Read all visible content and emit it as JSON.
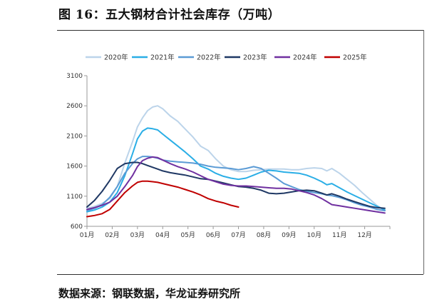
{
  "figure": {
    "title": "图 16：五大钢材合计社会库存（万吨）",
    "source": "数据来源：钢联数据，华龙证券研究所"
  },
  "chart_data": {
    "type": "line",
    "y_ticks": [
      600,
      1100,
      1600,
      2100,
      2600,
      3100
    ],
    "ylim": [
      600,
      3100
    ],
    "x_ticks": [
      "01月",
      "02月",
      "03月",
      "04月",
      "05月",
      "06月",
      "07月",
      "08月",
      "09月",
      "10月",
      "11月",
      "12月"
    ],
    "xlim": [
      0,
      12
    ],
    "grid": false,
    "legend_position": "top",
    "series": [
      {
        "name": "2020年",
        "color": "#bcd4ea",
        "x": [
          0.0,
          0.3,
          0.6,
          0.9,
          1.2,
          1.5,
          1.8,
          2.0,
          2.2,
          2.4,
          2.6,
          2.8,
          3.0,
          3.3,
          3.6,
          3.9,
          4.2,
          4.5,
          4.8,
          5.1,
          5.4,
          5.7,
          6.0,
          6.3,
          6.6,
          6.9,
          7.2,
          7.5,
          7.8,
          8.1,
          8.4,
          8.7,
          9.0,
          9.3,
          9.5,
          9.7,
          10.0,
          10.3,
          10.6,
          10.9,
          11.2,
          11.5,
          11.8
        ],
        "y": [
          900,
          930,
          980,
          1060,
          1260,
          1650,
          2000,
          2250,
          2400,
          2520,
          2580,
          2600,
          2550,
          2430,
          2340,
          2210,
          2080,
          1930,
          1860,
          1720,
          1600,
          1540,
          1510,
          1510,
          1530,
          1540,
          1550,
          1550,
          1550,
          1540,
          1540,
          1560,
          1570,
          1560,
          1520,
          1560,
          1480,
          1380,
          1280,
          1160,
          1050,
          940,
          870
        ]
      },
      {
        "name": "2021年",
        "color": "#2aaee6",
        "x": [
          0.0,
          0.3,
          0.6,
          0.9,
          1.2,
          1.5,
          1.8,
          2.0,
          2.2,
          2.4,
          2.6,
          2.8,
          3.0,
          3.3,
          3.6,
          3.9,
          4.2,
          4.5,
          4.8,
          5.1,
          5.4,
          5.7,
          6.0,
          6.3,
          6.6,
          6.9,
          7.2,
          7.5,
          7.8,
          8.1,
          8.4,
          8.7,
          9.0,
          9.3,
          9.5,
          9.7,
          10.0,
          10.3,
          10.6,
          10.9,
          11.2,
          11.5,
          11.8
        ],
        "y": [
          840,
          870,
          920,
          1000,
          1160,
          1440,
          1800,
          2050,
          2180,
          2230,
          2220,
          2200,
          2130,
          2030,
          1930,
          1830,
          1720,
          1600,
          1550,
          1480,
          1430,
          1400,
          1380,
          1400,
          1450,
          1500,
          1530,
          1520,
          1500,
          1490,
          1480,
          1450,
          1400,
          1340,
          1290,
          1310,
          1240,
          1170,
          1110,
          1050,
          990,
          930,
          870
        ]
      },
      {
        "name": "2022年",
        "color": "#5b9bd5",
        "x": [
          0.0,
          0.3,
          0.6,
          0.9,
          1.2,
          1.5,
          1.8,
          2.0,
          2.2,
          2.4,
          2.6,
          2.8,
          3.0,
          3.3,
          3.6,
          3.9,
          4.2,
          4.5,
          4.8,
          5.1,
          5.4,
          5.7,
          6.0,
          6.3,
          6.6,
          6.9,
          7.2,
          7.5,
          7.8,
          8.1,
          8.4,
          8.7,
          9.0,
          9.3,
          9.5,
          9.7,
          10.0,
          10.3,
          10.6,
          10.9,
          11.2,
          11.5,
          11.8
        ],
        "y": [
          860,
          900,
          960,
          1080,
          1260,
          1480,
          1640,
          1720,
          1760,
          1760,
          1750,
          1730,
          1700,
          1680,
          1670,
          1660,
          1650,
          1630,
          1600,
          1580,
          1570,
          1560,
          1540,
          1560,
          1590,
          1560,
          1480,
          1400,
          1310,
          1260,
          1210,
          1180,
          1160,
          1140,
          1120,
          1110,
          1080,
          1040,
          990,
          950,
          920,
          880,
          860
        ]
      },
      {
        "name": "2023年",
        "color": "#1f3864",
        "x": [
          0.0,
          0.3,
          0.6,
          0.9,
          1.2,
          1.5,
          1.8,
          2.0,
          2.2,
          2.4,
          2.6,
          2.8,
          3.0,
          3.3,
          3.6,
          3.9,
          4.2,
          4.5,
          4.8,
          5.1,
          5.4,
          5.7,
          6.0,
          6.3,
          6.6,
          6.9,
          7.2,
          7.5,
          7.8,
          8.1,
          8.4,
          8.7,
          9.0,
          9.3,
          9.5,
          9.7,
          10.0,
          10.3,
          10.6,
          10.9,
          11.2,
          11.5,
          11.8
        ],
        "y": [
          920,
          1030,
          1180,
          1360,
          1560,
          1640,
          1660,
          1660,
          1640,
          1610,
          1580,
          1550,
          1520,
          1490,
          1470,
          1450,
          1420,
          1390,
          1380,
          1350,
          1320,
          1290,
          1260,
          1250,
          1230,
          1200,
          1150,
          1140,
          1150,
          1170,
          1190,
          1200,
          1190,
          1150,
          1120,
          1140,
          1100,
          1050,
          1010,
          970,
          930,
          910,
          900
        ]
      },
      {
        "name": "2024年",
        "color": "#7030a0",
        "x": [
          0.0,
          0.3,
          0.6,
          0.9,
          1.2,
          1.5,
          1.8,
          2.0,
          2.2,
          2.4,
          2.6,
          2.8,
          3.0,
          3.3,
          3.6,
          3.9,
          4.2,
          4.5,
          4.8,
          5.1,
          5.4,
          5.7,
          6.0,
          6.3,
          6.6,
          6.9,
          7.2,
          7.5,
          7.8,
          8.1,
          8.4,
          8.7,
          9.0,
          9.3,
          9.5,
          9.7,
          10.0,
          10.3,
          10.6,
          10.9,
          11.2,
          11.5,
          11.8
        ],
        "y": [
          880,
          910,
          950,
          1000,
          1100,
          1260,
          1440,
          1590,
          1690,
          1730,
          1750,
          1740,
          1700,
          1640,
          1590,
          1550,
          1500,
          1440,
          1380,
          1340,
          1300,
          1280,
          1270,
          1270,
          1260,
          1250,
          1240,
          1230,
          1230,
          1220,
          1190,
          1160,
          1120,
          1060,
          1010,
          960,
          940,
          920,
          900,
          880,
          860,
          840,
          820
        ]
      },
      {
        "name": "2025年",
        "color": "#c00000",
        "x": [
          0.0,
          0.3,
          0.6,
          0.9,
          1.2,
          1.5,
          1.8,
          2.0,
          2.2,
          2.4,
          2.6,
          2.8,
          3.0,
          3.3,
          3.6,
          3.9,
          4.2,
          4.5,
          4.8,
          5.1,
          5.4,
          5.7,
          6.0
        ],
        "y": [
          760,
          780,
          810,
          880,
          1020,
          1160,
          1270,
          1330,
          1350,
          1350,
          1340,
          1330,
          1310,
          1280,
          1250,
          1210,
          1170,
          1120,
          1060,
          1020,
          990,
          950,
          920
        ]
      }
    ]
  }
}
